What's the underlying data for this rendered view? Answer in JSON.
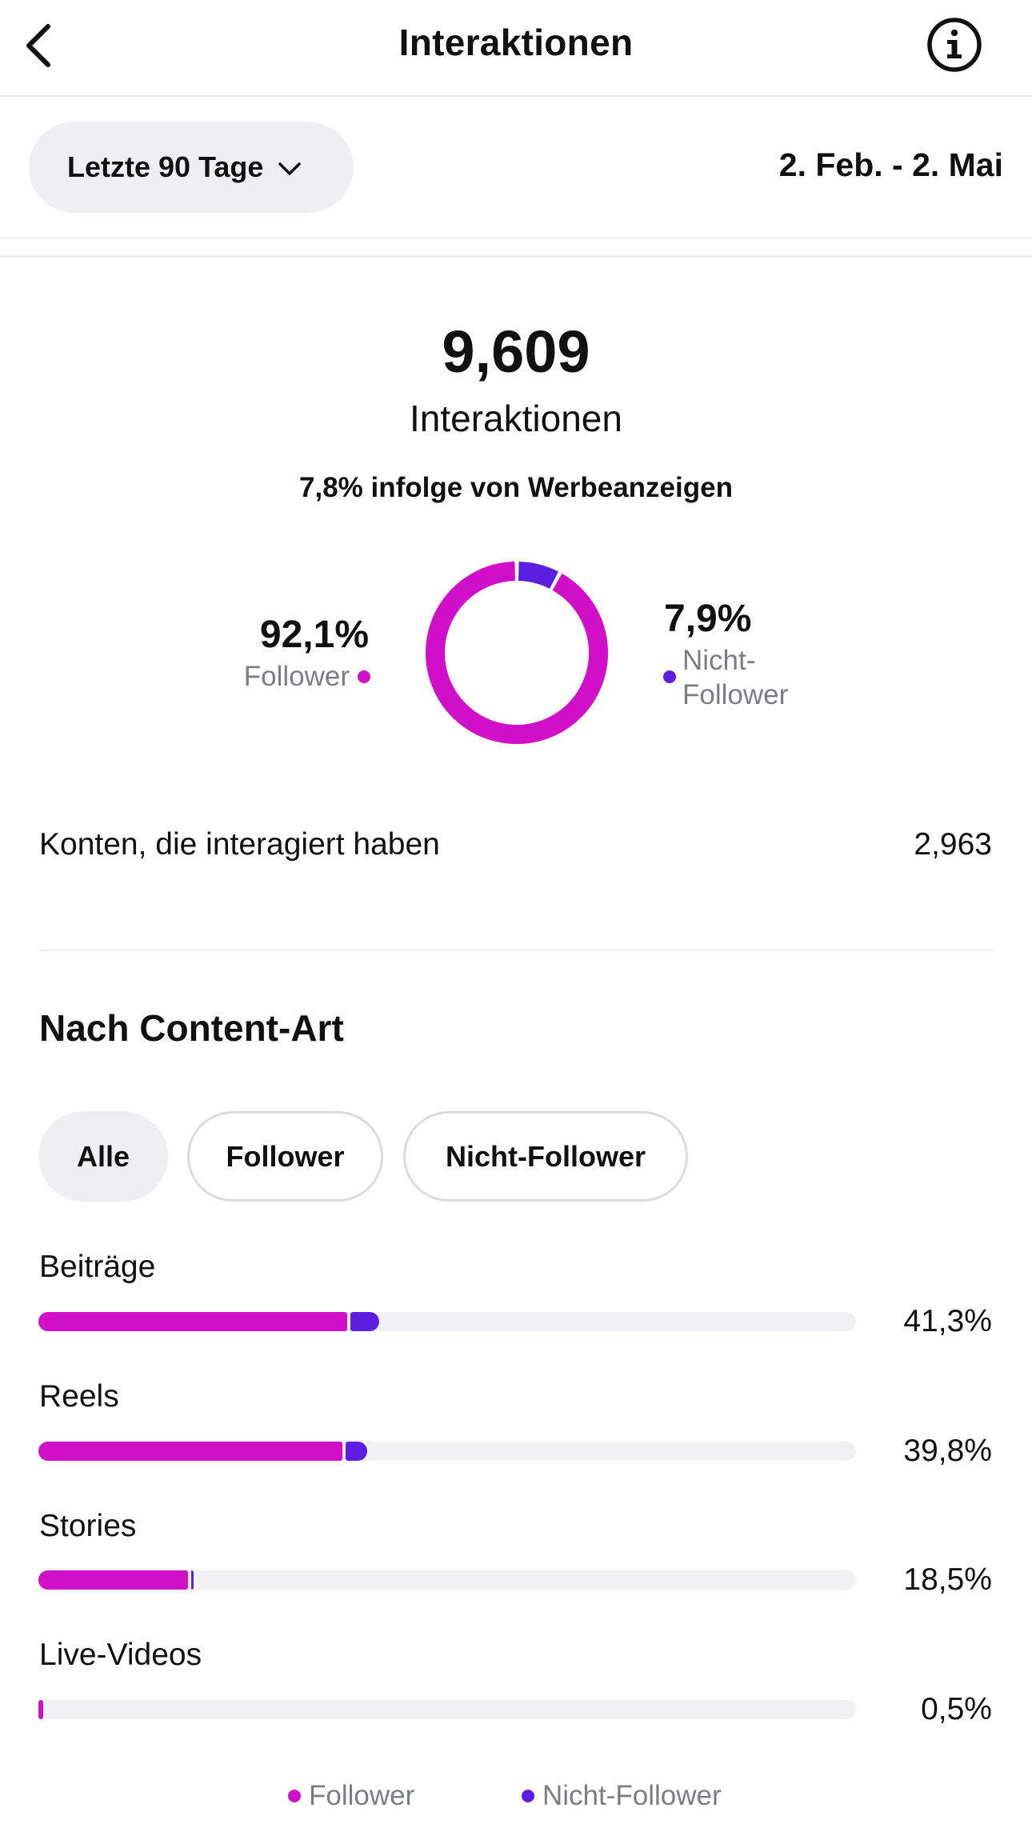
{
  "header": {
    "title": "Interaktionen",
    "back_icon": "chevron-left-icon",
    "info_icon": "info-circle-icon"
  },
  "period": {
    "selector_label": "Letzte 90 Tage",
    "date_range": "2. Feb. - 2. Mai"
  },
  "summary": {
    "total_value": "9,609",
    "total_label": "Interaktionen",
    "ad_note": "7,8% infolge von Werbeanzeigen",
    "follower_pct": "92,1%",
    "follower_label": "Follower",
    "nonfollower_pct": "7,9%",
    "nonfollower_label": "Nicht-Follower",
    "accounts_label": "Konten, die interagiert haben",
    "accounts_value": "2,963"
  },
  "colors": {
    "follower": "#d10fc8",
    "nonfollower": "#5c1ee0",
    "track": "#f1f1f3"
  },
  "content_type": {
    "title": "Nach Content-Art",
    "filters": [
      "Alle",
      "Follower",
      "Nicht-Follower"
    ],
    "selected_filter": "Alle",
    "categories": [
      {
        "label": "Beiträge",
        "pct": "41,3%",
        "follower": 37.8,
        "nonfollower": 3.5
      },
      {
        "label": "Reels",
        "pct": "39,8%",
        "follower": 37.2,
        "nonfollower": 2.6
      },
      {
        "label": "Stories",
        "pct": "18,5%",
        "follower": 18.3,
        "nonfollower": 0.2
      },
      {
        "label": "Live-Videos",
        "pct": "0,5%",
        "follower": 0.5,
        "nonfollower": 0
      }
    ],
    "legend": [
      "Follower",
      "Nicht-Follower"
    ]
  },
  "chart_data": {
    "type": "pie",
    "categories": [
      "Follower",
      "Nicht-Follower"
    ],
    "values": [
      92.1,
      7.9
    ]
  }
}
